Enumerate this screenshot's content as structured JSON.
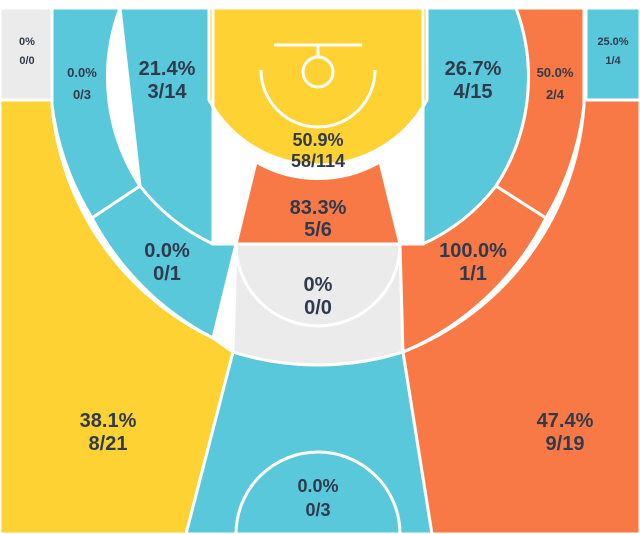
{
  "colors": {
    "below_avg": "#5ac8db",
    "average": "#fdd232",
    "above_avg": "#f87945",
    "no_attempts": "#ebebeb",
    "court_lines": "#ffffff",
    "text": "#2f3b4c"
  },
  "chart_data": {
    "type": "heatmap",
    "subtype": "basketball-shot-chart",
    "zones": [
      {
        "id": "left-corner-3",
        "pct": "0%",
        "made_att": "0/0",
        "made": 0,
        "attempts": 0,
        "color_key": "no_attempts"
      },
      {
        "id": "left-wing-3",
        "pct": "38.1%",
        "made_att": "8/21",
        "made": 8,
        "attempts": 21,
        "color_key": "average"
      },
      {
        "id": "top-key-3",
        "pct": "0.0%",
        "made_att": "0/3",
        "made": 0,
        "attempts": 3,
        "color_key": "below_avg"
      },
      {
        "id": "right-wing-3",
        "pct": "47.4%",
        "made_att": "9/19",
        "made": 9,
        "attempts": 19,
        "color_key": "above_avg"
      },
      {
        "id": "right-corner-3",
        "pct": "25.0%",
        "made_att": "1/4",
        "made": 1,
        "attempts": 4,
        "color_key": "below_avg"
      },
      {
        "id": "left-baseline-long-2",
        "pct": "0.0%",
        "made_att": "0/3",
        "made": 0,
        "attempts": 3,
        "color_key": "below_avg"
      },
      {
        "id": "left-short-2",
        "pct": "21.4%",
        "made_att": "3/14",
        "made": 3,
        "attempts": 14,
        "color_key": "below_avg"
      },
      {
        "id": "left-elbow-long-2",
        "pct": "0.0%",
        "made_att": "0/1",
        "made": 0,
        "attempts": 1,
        "color_key": "below_avg"
      },
      {
        "id": "top-long-2",
        "pct": "0%",
        "made_att": "0/0",
        "made": 0,
        "attempts": 0,
        "color_key": "no_attempts"
      },
      {
        "id": "right-elbow-long-2",
        "pct": "100.0%",
        "made_att": "1/1",
        "made": 1,
        "attempts": 1,
        "color_key": "above_avg"
      },
      {
        "id": "right-short-2",
        "pct": "26.7%",
        "made_att": "4/15",
        "made": 4,
        "attempts": 15,
        "color_key": "below_avg"
      },
      {
        "id": "right-baseline-long-2",
        "pct": "50.0%",
        "made_att": "2/4",
        "made": 2,
        "attempts": 4,
        "color_key": "above_avg"
      },
      {
        "id": "restricted-area",
        "pct": "50.9%",
        "made_att": "58/114",
        "made": 58,
        "attempts": 114,
        "color_key": "average"
      },
      {
        "id": "paint-non-ra",
        "pct": "83.3%",
        "made_att": "5/6",
        "made": 5,
        "attempts": 6,
        "color_key": "above_avg"
      }
    ]
  }
}
